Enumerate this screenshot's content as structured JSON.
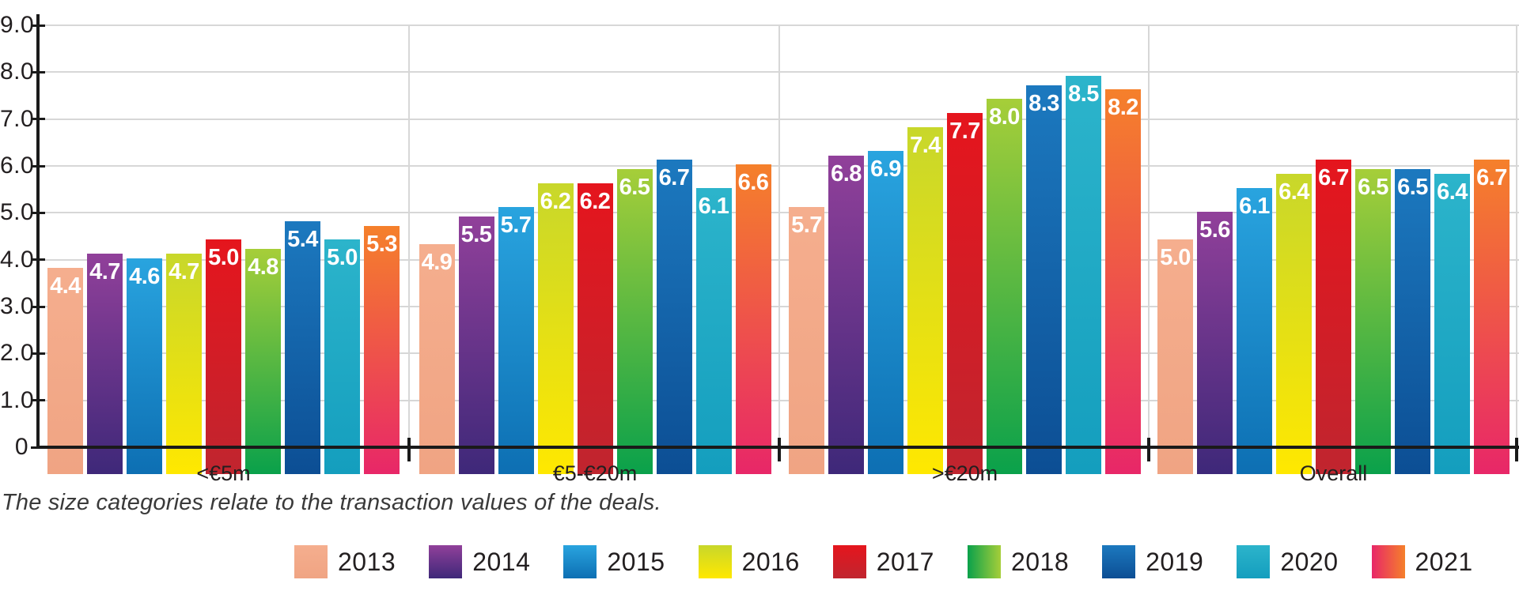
{
  "chart_data": {
    "type": "bar",
    "title": "",
    "xlabel": "",
    "ylabel": "",
    "categories": [
      "<€5m",
      "€5-€20m",
      ">€20m",
      "Overall"
    ],
    "series": [
      {
        "name": "2013",
        "values": [
          4.4,
          4.9,
          5.7,
          5.0
        ]
      },
      {
        "name": "2014",
        "values": [
          4.7,
          5.5,
          6.8,
          5.6
        ]
      },
      {
        "name": "2015",
        "values": [
          4.6,
          5.7,
          6.9,
          6.1
        ]
      },
      {
        "name": "2016",
        "values": [
          4.7,
          6.2,
          7.4,
          6.4
        ]
      },
      {
        "name": "2017",
        "values": [
          5.0,
          6.2,
          7.7,
          6.7
        ]
      },
      {
        "name": "2018",
        "values": [
          4.8,
          6.5,
          8.0,
          6.5
        ]
      },
      {
        "name": "2019",
        "values": [
          5.4,
          6.7,
          8.3,
          6.5
        ]
      },
      {
        "name": "2020",
        "values": [
          5.0,
          6.1,
          8.5,
          6.4
        ]
      },
      {
        "name": "2021",
        "values": [
          5.3,
          6.6,
          8.2,
          6.7
        ]
      }
    ],
    "value_labels_shown": true,
    "value_label_color": "#ffffff",
    "ylim": [
      0,
      9
    ],
    "yticks": [
      {
        "value": 0,
        "label": "0"
      },
      {
        "value": 1,
        "label": "1.0"
      },
      {
        "value": 2,
        "label": "2.0"
      },
      {
        "value": 3,
        "label": "3.0"
      },
      {
        "value": 4,
        "label": "4.0"
      },
      {
        "value": 5,
        "label": "5.0"
      },
      {
        "value": 6,
        "label": "6.0"
      },
      {
        "value": 7,
        "label": "7.0"
      },
      {
        "value": 8,
        "label": "8.0"
      },
      {
        "value": 9,
        "label": "9.0"
      }
    ],
    "grid": "horizontal-plus-group-dividers",
    "legend_position": "bottom",
    "series_colors": {
      "2013": {
        "top": "#F5AE8E",
        "bottom": "#F0A483",
        "legend_dir": "v"
      },
      "2014": {
        "top": "#91409A",
        "bottom": "#3E2879",
        "legend_dir": "v"
      },
      "2015": {
        "top": "#29A4DF",
        "bottom": "#0D6FB3",
        "legend_dir": "v"
      },
      "2016": {
        "top": "#C8D72B",
        "bottom": "#FFE800",
        "legend_dir": "v"
      },
      "2017": {
        "top": "#E5151D",
        "bottom": "#C0252F",
        "legend_dir": "v"
      },
      "2018": {
        "top": "#A6CE39",
        "bottom": "#0AA14B",
        "legend_dir": "h"
      },
      "2019": {
        "top": "#1C79BF",
        "bottom": "#0C4E94",
        "legend_dir": "v"
      },
      "2020": {
        "top": "#2CB4CB",
        "bottom": "#149EBE",
        "legend_dir": "v"
      },
      "2021": {
        "top": "#F5802B",
        "bottom": "#E82768",
        "legend_dir": "h"
      }
    }
  },
  "footnote": "The size categories relate to the transaction values of the deals."
}
